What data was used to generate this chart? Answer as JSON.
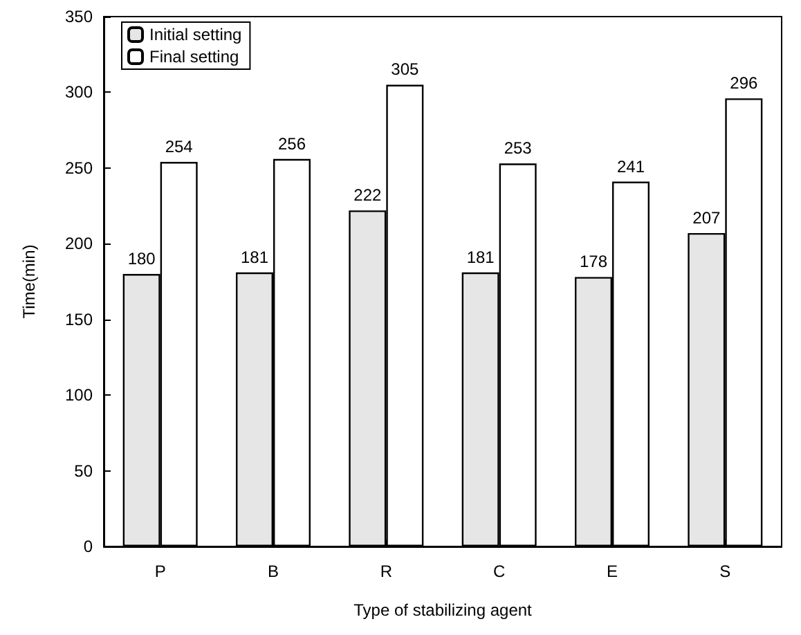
{
  "chart_data": {
    "type": "bar",
    "xlabel": "Type of stabilizing agent",
    "ylabel": "Time(min)",
    "categories": [
      "P",
      "B",
      "R",
      "C",
      "E",
      "S"
    ],
    "series": [
      {
        "name": "Initial setting",
        "color": "#e6e6e6",
        "values": [
          180,
          181,
          222,
          181,
          178,
          207
        ]
      },
      {
        "name": "Final setting",
        "color": "#ffffff",
        "values": [
          254,
          256,
          305,
          253,
          241,
          296
        ]
      }
    ],
    "ylim": [
      0,
      350
    ],
    "yticks": [
      0,
      50,
      100,
      150,
      200,
      250,
      300,
      350
    ],
    "grid": false,
    "legend": "top left",
    "data_labels": true
  }
}
